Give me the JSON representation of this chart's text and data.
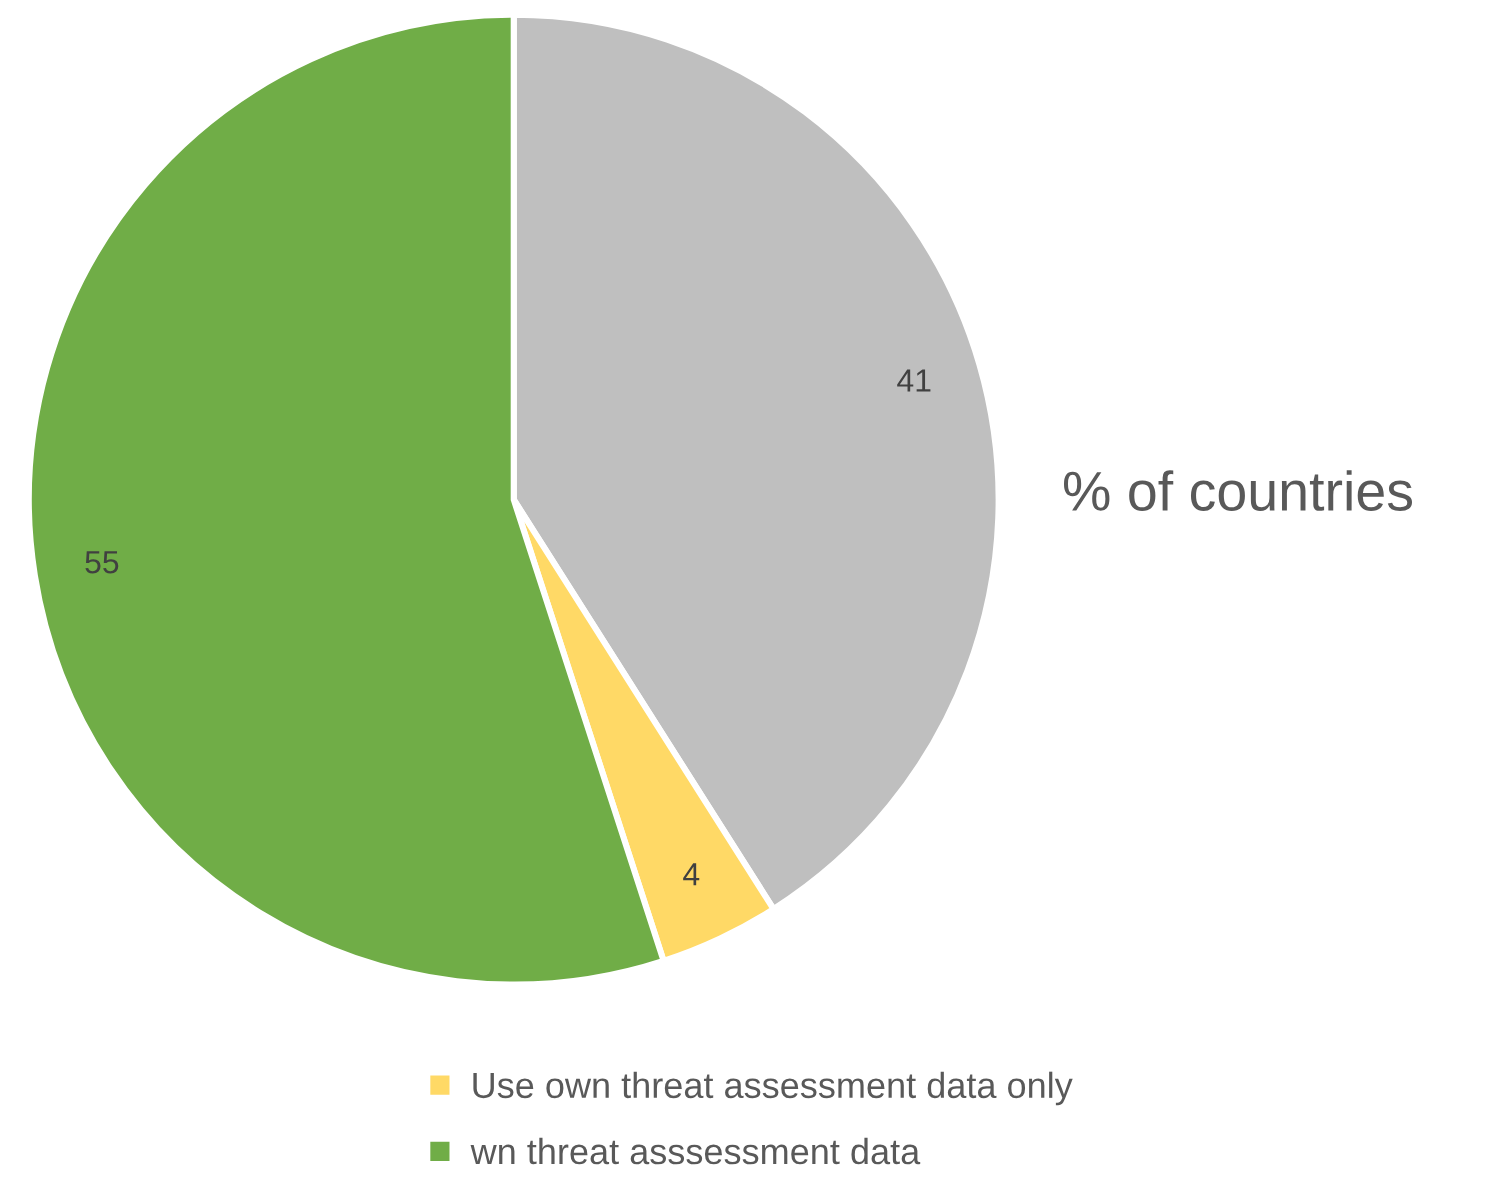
{
  "chart_data": {
    "type": "pie",
    "title": "% of countries",
    "categories": [
      null,
      "Use own threat assessment data only",
      "wn threat asssessment data"
    ],
    "values": [
      41,
      4,
      55
    ],
    "colors": [
      "#bfbfbf",
      "#ffd966",
      "#70ad47"
    ],
    "data_labels": true,
    "legend": "bottom"
  }
}
